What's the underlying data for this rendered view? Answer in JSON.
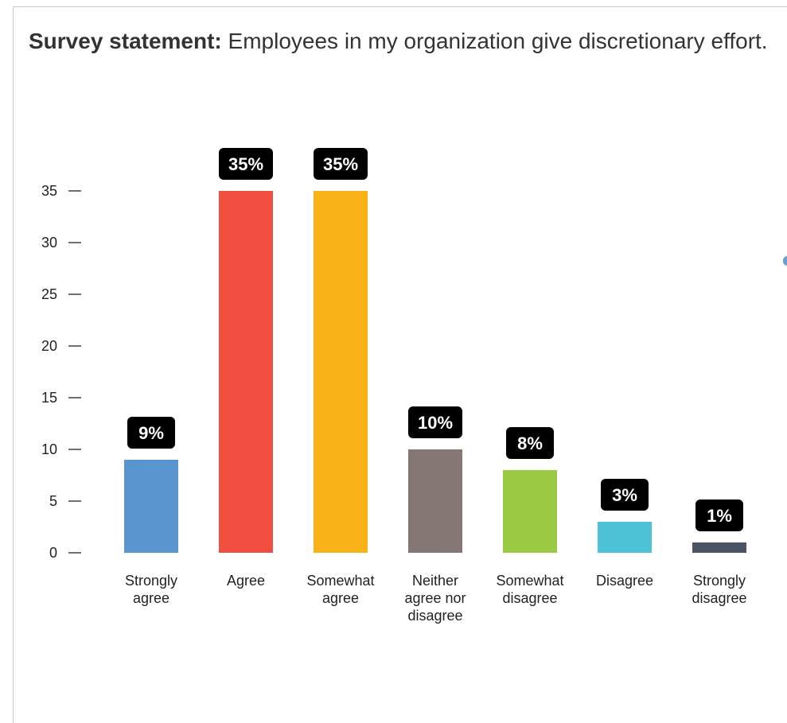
{
  "statement": {
    "prefix": "Survey statement:",
    "text": " Employees in my organization give discretionary effort."
  },
  "chart_data": {
    "type": "bar",
    "title": "",
    "xlabel": "",
    "ylabel": "",
    "ylim": [
      0,
      35
    ],
    "yticks": [
      0,
      5,
      10,
      15,
      20,
      25,
      30,
      35
    ],
    "grid": false,
    "categories": [
      "Strongly agree",
      "Agree",
      "Somewhat agree",
      "Neither agree nor disagree",
      "Somewhat disagree",
      "Disagree",
      "Strongly disagree"
    ],
    "values": [
      9,
      35,
      35,
      10,
      8,
      3,
      1
    ],
    "data_labels": [
      "9%",
      "35%",
      "35%",
      "10%",
      "8%",
      "3%",
      "1%"
    ],
    "colors": [
      "#5b95cf",
      "#f04e3f",
      "#fab219",
      "#857874",
      "#9ac943",
      "#4cc2d6",
      "#4a5462"
    ],
    "label_badge_color": "#000000"
  }
}
